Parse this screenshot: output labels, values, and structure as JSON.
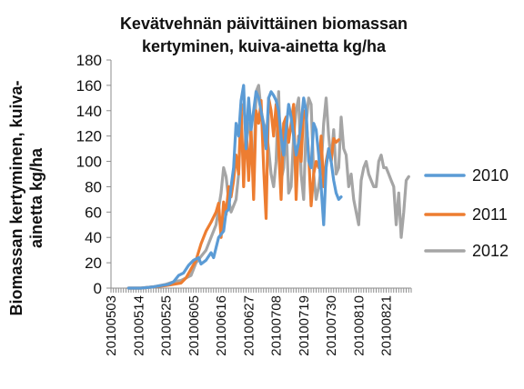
{
  "chart_data": {
    "type": "line",
    "title_lines": [
      "Kevätvehnän päivittäinen biomassan",
      "kertyminen, kuiva-ainetta kg/ha"
    ],
    "ylabel_lines": [
      "Biomassan kertyminen, kuiva-",
      "ainetta kg/ha"
    ],
    "xlabel": "",
    "ylim": [
      0,
      180
    ],
    "yticks": [
      0,
      20,
      40,
      60,
      80,
      100,
      120,
      140,
      160,
      180
    ],
    "x_start": "20100503",
    "x_end": "20100831",
    "xticks": [
      "20100503",
      "20100514",
      "20100525",
      "20100605",
      "20100616",
      "20100627",
      "20100708",
      "20100719",
      "20100730",
      "20100810",
      "20100821"
    ],
    "grid": false,
    "legend_position": "right",
    "series": [
      {
        "name": "2010",
        "color": "#5b9bd5",
        "x": [
          "20100510",
          "20100515",
          "20100520",
          "20100523",
          "20100526",
          "20100528",
          "20100530",
          "20100601",
          "20100603",
          "20100605",
          "20100607",
          "20100608",
          "20100610",
          "20100612",
          "20100613",
          "20100615",
          "20100617",
          "20100618",
          "20100619",
          "20100620",
          "20100621",
          "20100622",
          "20100623",
          "20100624",
          "20100625",
          "20100626",
          "20100627",
          "20100628",
          "20100629",
          "20100630",
          "20100701",
          "20100702",
          "20100703",
          "20100704",
          "20100705",
          "20100706",
          "20100707",
          "20100708",
          "20100709",
          "20100710",
          "20100711",
          "20100712",
          "20100713",
          "20100714",
          "20100715",
          "20100716",
          "20100717",
          "20100718",
          "20100719",
          "20100720",
          "20100721",
          "20100722",
          "20100723",
          "20100724",
          "20100725",
          "20100726",
          "20100727",
          "20100728",
          "20100729",
          "20100730",
          "20100731",
          "20100801",
          "20100802",
          "20100803"
        ],
        "values": [
          0,
          0,
          1,
          2,
          3,
          5,
          10,
          12,
          18,
          22,
          24,
          19,
          22,
          28,
          24,
          40,
          45,
          60,
          62,
          80,
          95,
          130,
          120,
          148,
          160,
          110,
          150,
          125,
          140,
          155,
          150,
          140,
          128,
          110,
          150,
          155,
          152,
          148,
          140,
          120,
          105,
          125,
          145,
          135,
          120,
          105,
          115,
          130,
          150,
          140,
          100,
          95,
          130,
          125,
          105,
          80,
          50,
          95,
          110,
          100,
          85,
          75,
          70,
          72
        ]
      },
      {
        "name": "2011",
        "color": "#ed7d31",
        "x": [
          "20100510",
          "20100515",
          "20100520",
          "20100525",
          "20100528",
          "20100531",
          "20100602",
          "20100604",
          "20100606",
          "20100608",
          "20100610",
          "20100612",
          "20100614",
          "20100615",
          "20100616",
          "20100617",
          "20100618",
          "20100619",
          "20100620",
          "20100621",
          "20100622",
          "20100623",
          "20100624",
          "20100625",
          "20100626",
          "20100627",
          "20100628",
          "20100629",
          "20100630",
          "20100701",
          "20100702",
          "20100703",
          "20100704",
          "20100705",
          "20100706",
          "20100707",
          "20100708",
          "20100709",
          "20100710",
          "20100711",
          "20100712",
          "20100713",
          "20100714",
          "20100715",
          "20100716",
          "20100717",
          "20100718",
          "20100719",
          "20100720",
          "20100721",
          "20100722",
          "20100723",
          "20100724",
          "20100725",
          "20100726",
          "20100727",
          "20100728",
          "20100729",
          "20100730",
          "20100731",
          "20100801",
          "20100802"
        ],
        "values": [
          0,
          0,
          1,
          2,
          3,
          4,
          8,
          15,
          22,
          35,
          45,
          52,
          60,
          67,
          40,
          68,
          58,
          80,
          72,
          85,
          105,
          90,
          145,
          80,
          130,
          85,
          125,
          70,
          140,
          130,
          148,
          95,
          55,
          150,
          140,
          120,
          145,
          110,
          70,
          130,
          135,
          115,
          130,
          145,
          70,
          120,
          100,
          140,
          135,
          105,
          65,
          90,
          100,
          95,
          120,
          80,
          100,
          110,
          100,
          118,
          115,
          117
        ]
      },
      {
        "name": "2012",
        "color": "#a5a5a5",
        "x": [
          "20100510",
          "20100515",
          "20100520",
          "20100525",
          "20100528",
          "20100531",
          "20100602",
          "20100604",
          "20100606",
          "20100608",
          "20100610",
          "20100612",
          "20100614",
          "20100616",
          "20100617",
          "20100618",
          "20100619",
          "20100620",
          "20100621",
          "20100622",
          "20100623",
          "20100624",
          "20100625",
          "20100626",
          "20100627",
          "20100628",
          "20100629",
          "20100630",
          "20100701",
          "20100702",
          "20100703",
          "20100704",
          "20100705",
          "20100706",
          "20100707",
          "20100708",
          "20100709",
          "20100710",
          "20100711",
          "20100712",
          "20100713",
          "20100714",
          "20100715",
          "20100716",
          "20100717",
          "20100718",
          "20100719",
          "20100720",
          "20100721",
          "20100722",
          "20100723",
          "20100724",
          "20100725",
          "20100726",
          "20100727",
          "20100728",
          "20100729",
          "20100730",
          "20100731",
          "20100801",
          "20100802",
          "20100803",
          "20100804",
          "20100805",
          "20100806",
          "20100807",
          "20100808",
          "20100809",
          "20100810",
          "20100811",
          "20100812",
          "20100813",
          "20100814",
          "20100815",
          "20100816",
          "20100817",
          "20100818",
          "20100819",
          "20100820",
          "20100821",
          "20100822",
          "20100823",
          "20100824",
          "20100825",
          "20100826",
          "20100827",
          "20100828",
          "20100829",
          "20100830"
        ],
        "values": [
          0,
          0,
          1,
          3,
          5,
          6,
          8,
          10,
          20,
          25,
          30,
          40,
          50,
          75,
          95,
          88,
          70,
          60,
          65,
          70,
          90,
          140,
          145,
          120,
          130,
          115,
          85,
          155,
          160,
          140,
          130,
          125,
          110,
          90,
          80,
          100,
          155,
          85,
          95,
          130,
          75,
          80,
          120,
          140,
          150,
          90,
          70,
          130,
          150,
          145,
          90,
          70,
          80,
          95,
          130,
          150,
          120,
          100,
          125,
          90,
          95,
          135,
          110,
          105,
          80,
          90,
          70,
          60,
          50,
          85,
          95,
          100,
          90,
          85,
          80,
          80,
          100,
          105,
          95,
          95,
          90,
          85,
          80,
          50,
          75,
          40,
          60,
          85,
          88
        ]
      }
    ]
  }
}
